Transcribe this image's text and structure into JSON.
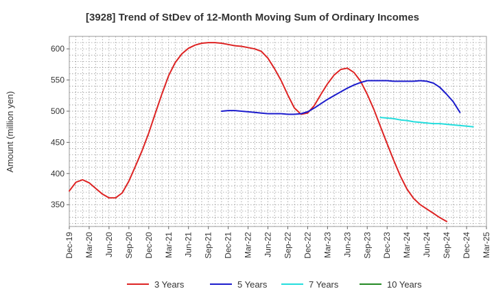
{
  "chart_data": {
    "type": "line",
    "title": "[3928]  Trend of StDev of 12-Month Moving Sum of Ordinary Incomes",
    "ylabel": "Amount (million yen)",
    "xlabel": "",
    "ylim": [
      315,
      620
    ],
    "yticks": [
      350,
      400,
      450,
      500,
      550,
      600
    ],
    "x_tick_labels": [
      "Dec-19",
      "Mar-20",
      "Jun-20",
      "Sep-20",
      "Dec-20",
      "Mar-21",
      "Jun-21",
      "Sep-21",
      "Dec-21",
      "Mar-22",
      "Jun-22",
      "Sep-22",
      "Dec-22",
      "Mar-23",
      "Jun-23",
      "Sep-23",
      "Dec-23",
      "Mar-24",
      "Jun-24",
      "Sep-24",
      "Dec-24",
      "Mar-25"
    ],
    "x_start": "Dec-19",
    "x_end": "Mar-25",
    "grid": true,
    "legend_position": "bottom",
    "series": [
      {
        "name": "3 Years",
        "color": "#dd2222",
        "start": "Dec-19",
        "values": [
          372,
          386,
          390,
          385,
          376,
          367,
          361,
          361,
          369,
          388,
          412,
          437,
          465,
          497,
          528,
          557,
          578,
          592,
          601,
          606,
          609,
          610,
          610,
          609,
          607,
          605,
          604,
          602,
          600,
          596,
          585,
          568,
          549,
          526,
          505,
          495,
          497,
          509,
          527,
          544,
          558,
          567,
          569,
          562,
          548,
          527,
          503,
          475,
          448,
          421,
          396,
          375,
          360,
          350,
          343,
          336,
          329,
          323
        ]
      },
      {
        "name": "5 Years",
        "color": "#1a1acc",
        "start": "Nov-21",
        "values": [
          500,
          501,
          501,
          500,
          499,
          498,
          497,
          496,
          496,
          496,
          495,
          495,
          496,
          499,
          505,
          512,
          519,
          525,
          531,
          537,
          542,
          546,
          549,
          549,
          549,
          549,
          548,
          548,
          548,
          548,
          549,
          548,
          545,
          538,
          527,
          515,
          498
        ]
      },
      {
        "name": "7 Years",
        "color": "#22dddd",
        "start": "Nov-23",
        "values": [
          490,
          489,
          488,
          486,
          485,
          483,
          482,
          481,
          480,
          480,
          479,
          478,
          477,
          476,
          475
        ]
      },
      {
        "name": "10 Years",
        "color": "#228822",
        "start": "Dec-24",
        "values": []
      }
    ]
  }
}
